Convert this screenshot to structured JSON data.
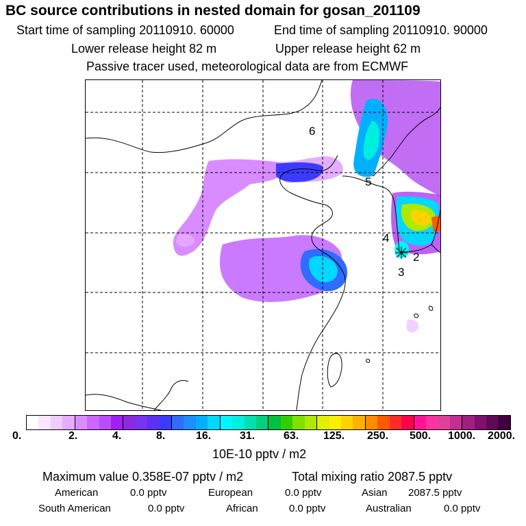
{
  "header": {
    "title": "BC  source contributions in nested domain for gosan_201109",
    "start_time": "Start time of sampling 20110910. 60000",
    "end_time": "End time of sampling 20110910. 90000",
    "lower_release": "Lower release height   82 m",
    "upper_release": "Upper release height   62 m",
    "tracer_note": "Passive tracer used, meteorological data are from ECMWF"
  },
  "chart_data": {
    "type": "heatmap",
    "title": "BC  source contributions in nested domain for gosan_201109",
    "colorbar_label": "10E-10 pptv / m2",
    "levels": [
      "0.",
      "2.",
      "4.",
      "8.",
      "16.",
      "31.",
      "63.",
      "125.",
      "250.",
      "500.",
      "1000.",
      "2000."
    ],
    "colors": [
      "#ffffff",
      "#f8e7ff",
      "#f0ccff",
      "#e6acff",
      "#d98cff",
      "#cc66ff",
      "#b84dff",
      "#a020f0",
      "#8a2be2",
      "#7733ee",
      "#5a32f5",
      "#3b3bff",
      "#2f6cff",
      "#1e8fff",
      "#00b0ff",
      "#00d8ff",
      "#00f5ff",
      "#00eedd",
      "#00e0b0",
      "#00d080",
      "#00c040",
      "#30d000",
      "#80e000",
      "#b0e800",
      "#e0f000",
      "#ffee00",
      "#ffd200",
      "#ffb000",
      "#ff8c00",
      "#ff5a00",
      "#ff2a2a",
      "#ff004c",
      "#ff1493",
      "#ff33a0",
      "#e0409a",
      "#c03090",
      "#a02080",
      "#801070",
      "#600a55",
      "#400040"
    ],
    "region_labels": [
      "6",
      "5",
      "4",
      "2",
      "3"
    ],
    "maximum_value": "Maximum value  0.358E-07 pptv / m2",
    "total_mixing_ratio": "Total mixing ratio     2087.5 pptv"
  },
  "contributions": {
    "american": {
      "label": "American",
      "value": "0.0 pptv"
    },
    "european": {
      "label": "European",
      "value": "0.0 pptv"
    },
    "asian": {
      "label": "Asian",
      "value": "2087.5 pptv"
    },
    "south_american": {
      "label": "South American",
      "value": "0.0 pptv"
    },
    "african": {
      "label": "African",
      "value": "0.0 pptv"
    },
    "australian": {
      "label": "Australian",
      "value": "0.0 pptv"
    }
  }
}
